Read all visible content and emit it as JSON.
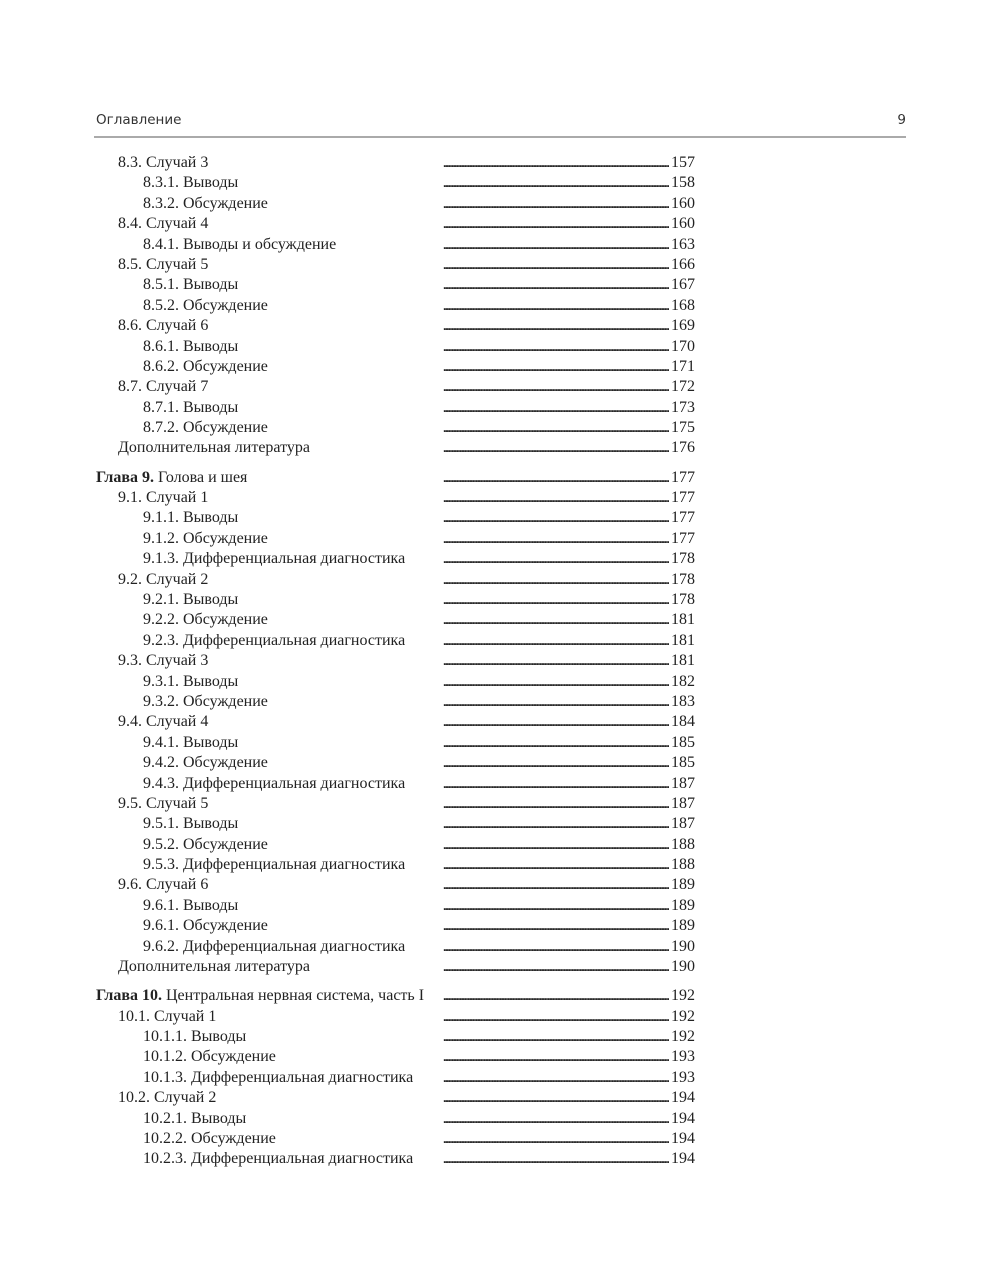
{
  "header": {
    "title": "Оглавление",
    "page_number": "9"
  },
  "sections": [
    {
      "entries": [
        {
          "level": 1,
          "prefix": "",
          "title": "8.3. Случай 3",
          "page": "157"
        },
        {
          "level": 2,
          "prefix": "",
          "title": "8.3.1. Выводы",
          "page": "158"
        },
        {
          "level": 2,
          "prefix": "",
          "title": "8.3.2. Обсуждение",
          "page": "160"
        },
        {
          "level": 1,
          "prefix": "",
          "title": "8.4. Случай 4",
          "page": "160"
        },
        {
          "level": 2,
          "prefix": "",
          "title": "8.4.1. Выводы и обсуждение",
          "page": "163"
        },
        {
          "level": 1,
          "prefix": "",
          "title": "8.5. Случай 5",
          "page": "166"
        },
        {
          "level": 2,
          "prefix": "",
          "title": "8.5.1. Выводы",
          "page": "167"
        },
        {
          "level": 2,
          "prefix": "",
          "title": "8.5.2. Обсуждение",
          "page": "168"
        },
        {
          "level": 1,
          "prefix": "",
          "title": "8.6. Случай 6",
          "page": "169"
        },
        {
          "level": 2,
          "prefix": "",
          "title": "8.6.1. Выводы",
          "page": "170"
        },
        {
          "level": 2,
          "prefix": "",
          "title": "8.6.2. Обсуждение",
          "page": "171"
        },
        {
          "level": 1,
          "prefix": "",
          "title": "8.7. Случай 7",
          "page": "172"
        },
        {
          "level": 2,
          "prefix": "",
          "title": "8.7.1. Выводы",
          "page": "173"
        },
        {
          "level": 2,
          "prefix": "",
          "title": "8.7.2. Обсуждение",
          "page": "175"
        },
        {
          "level": 1,
          "prefix": "",
          "title": "Дополнительная литература",
          "page": "176"
        }
      ]
    },
    {
      "entries": [
        {
          "level": 0,
          "prefix": "Глава 9.",
          "title": "Голова и шея",
          "page": "177"
        },
        {
          "level": 1,
          "prefix": "",
          "title": "9.1. Случай 1",
          "page": "177"
        },
        {
          "level": 2,
          "prefix": "",
          "title": "9.1.1. Выводы",
          "page": "177"
        },
        {
          "level": 2,
          "prefix": "",
          "title": "9.1.2. Обсуждение",
          "page": "177"
        },
        {
          "level": 2,
          "prefix": "",
          "title": "9.1.3. Дифференциальная диагностика",
          "page": "178"
        },
        {
          "level": 1,
          "prefix": "",
          "title": "9.2. Случай 2",
          "page": "178"
        },
        {
          "level": 2,
          "prefix": "",
          "title": "9.2.1. Выводы",
          "page": "178"
        },
        {
          "level": 2,
          "prefix": "",
          "title": "9.2.2. Обсуждение",
          "page": "181"
        },
        {
          "level": 2,
          "prefix": "",
          "title": "9.2.3. Дифференциальная диагностика",
          "page": "181"
        },
        {
          "level": 1,
          "prefix": "",
          "title": "9.3. Случай 3",
          "page": "181"
        },
        {
          "level": 2,
          "prefix": "",
          "title": "9.3.1. Выводы",
          "page": "182"
        },
        {
          "level": 2,
          "prefix": "",
          "title": "9.3.2. Обсуждение",
          "page": "183"
        },
        {
          "level": 1,
          "prefix": "",
          "title": "9.4. Случай 4",
          "page": "184"
        },
        {
          "level": 2,
          "prefix": "",
          "title": "9.4.1. Выводы",
          "page": "185"
        },
        {
          "level": 2,
          "prefix": "",
          "title": "9.4.2. Обсуждение",
          "page": "185"
        },
        {
          "level": 2,
          "prefix": "",
          "title": "9.4.3. Дифференциальная диагностика",
          "page": "187"
        },
        {
          "level": 1,
          "prefix": "",
          "title": "9.5. Случай 5",
          "page": "187"
        },
        {
          "level": 2,
          "prefix": "",
          "title": "9.5.1. Выводы",
          "page": "187"
        },
        {
          "level": 2,
          "prefix": "",
          "title": "9.5.2. Обсуждение",
          "page": "188"
        },
        {
          "level": 2,
          "prefix": "",
          "title": "9.5.3. Дифференциальная диагностика",
          "page": "188"
        },
        {
          "level": 1,
          "prefix": "",
          "title": "9.6. Случай 6",
          "page": "189"
        },
        {
          "level": 2,
          "prefix": "",
          "title": "9.6.1. Выводы",
          "page": "189"
        },
        {
          "level": 2,
          "prefix": "",
          "title": "9.6.1. Обсуждение",
          "page": "189"
        },
        {
          "level": 2,
          "prefix": "",
          "title": "9.6.2. Дифференциальная диагностика",
          "page": "190"
        },
        {
          "level": 1,
          "prefix": "",
          "title": "Дополнительная литература",
          "page": "190"
        }
      ]
    },
    {
      "entries": [
        {
          "level": 0,
          "prefix": "Глава 10.",
          "title": "Центральная нервная система, часть I",
          "page": "192"
        },
        {
          "level": 1,
          "prefix": "",
          "title": "10.1. Случай 1",
          "page": "192"
        },
        {
          "level": 2,
          "prefix": "",
          "title": "10.1.1. Выводы",
          "page": "192"
        },
        {
          "level": 2,
          "prefix": "",
          "title": "10.1.2. Обсуждение",
          "page": "193"
        },
        {
          "level": 2,
          "prefix": "",
          "title": "10.1.3. Дифференциальная диагностика",
          "page": "193"
        },
        {
          "level": 1,
          "prefix": "",
          "title": "10.2. Случай 2",
          "page": "194"
        },
        {
          "level": 2,
          "prefix": "",
          "title": "10.2.1. Выводы",
          "page": "194"
        },
        {
          "level": 2,
          "prefix": "",
          "title": "10.2.2. Обсуждение",
          "page": "194"
        },
        {
          "level": 2,
          "prefix": "",
          "title": "10.2.3. Дифференциальная диагностика",
          "page": "194"
        }
      ]
    }
  ]
}
